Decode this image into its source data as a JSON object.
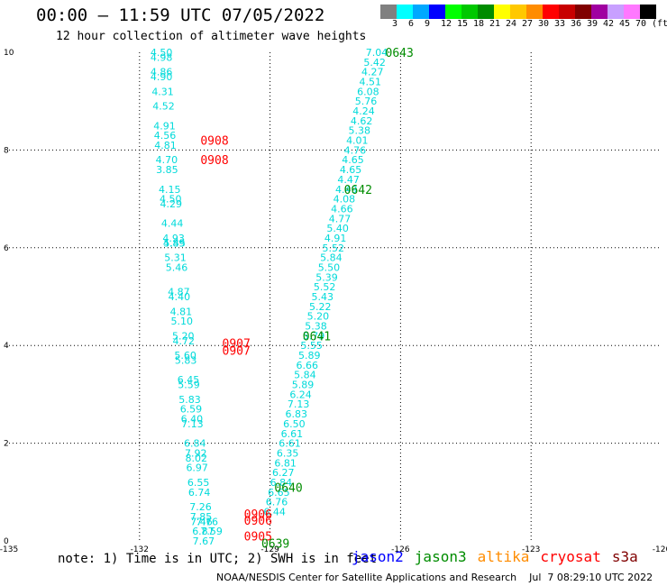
{
  "title": "00:00 — 11:59 UTC 07/05/2022",
  "subtitle": "12 hour collection of altimeter wave heights",
  "colorbar": {
    "colors": [
      "#808080",
      "#00ffff",
      "#00a8ff",
      "#0000ff",
      "#00ff00",
      "#00c800",
      "#008c00",
      "#ffff00",
      "#ffc800",
      "#ff8c00",
      "#ff0000",
      "#c80000",
      "#800000",
      "#a000a0",
      "#c8a0ff",
      "#ff78ff",
      "#000000"
    ],
    "labels": [
      "3",
      "6",
      "9",
      "12",
      "15",
      "18",
      "21",
      "24",
      "27",
      "30",
      "33",
      "36",
      "39",
      "42",
      "45",
      "70",
      "(ft)"
    ]
  },
  "chart_data": {
    "type": "scatter",
    "x_ticks": [
      "-135",
      "-132",
      "-129",
      "-126",
      "-123",
      "-120"
    ],
    "y_ticks": [
      "0",
      "2",
      "4",
      "6",
      "8",
      "10"
    ],
    "xlim": [
      -135,
      -120
    ],
    "ylim": [
      0,
      10
    ],
    "grid": true,
    "series": [
      {
        "name": "jason3",
        "color": "#00dada",
        "points": [
          {
            "x": -131.75,
            "y": 10.0,
            "v": "4.50"
          },
          {
            "x": -131.75,
            "y": 9.9,
            "v": "4.98"
          },
          {
            "x": -131.75,
            "y": 9.6,
            "v": "4.86"
          },
          {
            "x": -131.75,
            "y": 9.5,
            "v": "4.90"
          },
          {
            "x": -131.72,
            "y": 9.2,
            "v": "4.31"
          },
          {
            "x": -131.7,
            "y": 8.9,
            "v": "4.52"
          },
          {
            "x": -131.68,
            "y": 8.5,
            "v": "4.91"
          },
          {
            "x": -131.67,
            "y": 8.3,
            "v": "4.56"
          },
          {
            "x": -131.66,
            "y": 8.1,
            "v": "4.81"
          },
          {
            "x": -131.63,
            "y": 7.8,
            "v": "4.70"
          },
          {
            "x": -131.62,
            "y": 7.6,
            "v": "3.85"
          },
          {
            "x": -131.56,
            "y": 7.2,
            "v": "4.15"
          },
          {
            "x": -131.54,
            "y": 7.0,
            "v": "4.50"
          },
          {
            "x": -131.53,
            "y": 6.9,
            "v": "4.29"
          },
          {
            "x": -131.5,
            "y": 6.5,
            "v": "4.44"
          },
          {
            "x": -131.47,
            "y": 6.2,
            "v": "4.93"
          },
          {
            "x": -131.46,
            "y": 6.1,
            "v": "4.89"
          },
          {
            "x": -131.45,
            "y": 6.1,
            "v": "5.45"
          },
          {
            "x": -131.43,
            "y": 5.8,
            "v": "5.31"
          },
          {
            "x": -131.4,
            "y": 5.6,
            "v": "5.46"
          },
          {
            "x": -131.35,
            "y": 5.1,
            "v": "4.87"
          },
          {
            "x": -131.34,
            "y": 5.0,
            "v": "4.40"
          },
          {
            "x": -131.3,
            "y": 4.7,
            "v": "4.81"
          },
          {
            "x": -131.28,
            "y": 4.5,
            "v": "5.10"
          },
          {
            "x": -131.25,
            "y": 4.2,
            "v": "5.20"
          },
          {
            "x": -131.24,
            "y": 4.1,
            "v": "4.72"
          },
          {
            "x": -131.2,
            "y": 3.8,
            "v": "5.60"
          },
          {
            "x": -131.19,
            "y": 3.7,
            "v": "5.83"
          },
          {
            "x": -131.13,
            "y": 3.3,
            "v": "6.45"
          },
          {
            "x": -131.12,
            "y": 3.2,
            "v": "5.59"
          },
          {
            "x": -131.1,
            "y": 2.9,
            "v": "5.83"
          },
          {
            "x": -131.07,
            "y": 2.7,
            "v": "6.59"
          },
          {
            "x": -131.05,
            "y": 2.5,
            "v": "6.40"
          },
          {
            "x": -131.04,
            "y": 2.4,
            "v": "7.13"
          },
          {
            "x": -130.98,
            "y": 2.0,
            "v": "6.84"
          },
          {
            "x": -130.96,
            "y": 1.8,
            "v": "7.92"
          },
          {
            "x": -130.95,
            "y": 1.7,
            "v": "8.02"
          },
          {
            "x": -130.93,
            "y": 1.5,
            "v": "6.97"
          },
          {
            "x": -130.9,
            "y": 1.2,
            "v": "6.55"
          },
          {
            "x": -130.88,
            "y": 1.0,
            "v": "6.74"
          },
          {
            "x": -130.85,
            "y": 0.7,
            "v": "7.26"
          },
          {
            "x": -130.84,
            "y": 0.5,
            "v": "7.85"
          },
          {
            "x": -130.83,
            "y": 0.4,
            "v": "7.46"
          },
          {
            "x": -130.79,
            "y": 0.2,
            "v": "6.87"
          },
          {
            "x": -130.78,
            "y": 0.0,
            "v": "7.67"
          },
          {
            "x": -130.7,
            "y": 0.4,
            "v": "7.76"
          },
          {
            "x": -130.6,
            "y": 0.2,
            "v": "7.59"
          },
          {
            "x": -126.8,
            "y": 10.0,
            "v": "7.04"
          },
          {
            "x": -126.85,
            "y": 9.8,
            "v": "5.42"
          },
          {
            "x": -126.9,
            "y": 9.6,
            "v": "4.27"
          },
          {
            "x": -126.95,
            "y": 9.4,
            "v": "4.51"
          },
          {
            "x": -127.0,
            "y": 9.2,
            "v": "6.08"
          },
          {
            "x": -127.05,
            "y": 9.0,
            "v": "5.76"
          },
          {
            "x": -127.1,
            "y": 8.8,
            "v": "4.24"
          },
          {
            "x": -127.15,
            "y": 8.6,
            "v": "4.62"
          },
          {
            "x": -127.2,
            "y": 8.4,
            "v": "5.38"
          },
          {
            "x": -127.25,
            "y": 8.2,
            "v": "4.01"
          },
          {
            "x": -127.3,
            "y": 8.0,
            "v": "4.76"
          },
          {
            "x": -127.35,
            "y": 7.8,
            "v": "4.65"
          },
          {
            "x": -127.4,
            "y": 7.6,
            "v": "4.65"
          },
          {
            "x": -127.45,
            "y": 7.4,
            "v": "4.47"
          },
          {
            "x": -127.5,
            "y": 7.2,
            "v": "4.49"
          },
          {
            "x": -127.55,
            "y": 7.0,
            "v": "4.08"
          },
          {
            "x": -127.6,
            "y": 6.8,
            "v": "4.66"
          },
          {
            "x": -127.65,
            "y": 6.6,
            "v": "4.77"
          },
          {
            "x": -127.7,
            "y": 6.4,
            "v": "5.40"
          },
          {
            "x": -127.75,
            "y": 6.2,
            "v": "4.91"
          },
          {
            "x": -127.8,
            "y": 6.0,
            "v": "5.52"
          },
          {
            "x": -127.85,
            "y": 5.8,
            "v": "5.84"
          },
          {
            "x": -127.9,
            "y": 5.6,
            "v": "5.50"
          },
          {
            "x": -127.95,
            "y": 5.4,
            "v": "5.39"
          },
          {
            "x": -128.0,
            "y": 5.2,
            "v": "5.52"
          },
          {
            "x": -128.05,
            "y": 5.0,
            "v": "5.43"
          },
          {
            "x": -128.1,
            "y": 4.8,
            "v": "5.22"
          },
          {
            "x": -128.15,
            "y": 4.6,
            "v": "5.20"
          },
          {
            "x": -128.2,
            "y": 4.4,
            "v": "5.38"
          },
          {
            "x": -128.25,
            "y": 4.2,
            "v": "5.79"
          },
          {
            "x": -128.3,
            "y": 4.0,
            "v": "5.55"
          },
          {
            "x": -128.35,
            "y": 3.8,
            "v": "5.89"
          },
          {
            "x": -128.4,
            "y": 3.6,
            "v": "6.66"
          },
          {
            "x": -128.45,
            "y": 3.4,
            "v": "5.84"
          },
          {
            "x": -128.5,
            "y": 3.2,
            "v": "5.89"
          },
          {
            "x": -128.55,
            "y": 3.0,
            "v": "6.24"
          },
          {
            "x": -128.6,
            "y": 2.8,
            "v": "7.13"
          },
          {
            "x": -128.65,
            "y": 2.6,
            "v": "6.83"
          },
          {
            "x": -128.7,
            "y": 2.4,
            "v": "6.50"
          },
          {
            "x": -128.75,
            "y": 2.2,
            "v": "6.61"
          },
          {
            "x": -128.8,
            "y": 2.0,
            "v": "6.61"
          },
          {
            "x": -128.85,
            "y": 1.8,
            "v": "6.35"
          },
          {
            "x": -128.9,
            "y": 1.6,
            "v": "6.81"
          },
          {
            "x": -128.95,
            "y": 1.4,
            "v": "6.27"
          },
          {
            "x": -129.0,
            "y": 1.2,
            "v": "6.84"
          },
          {
            "x": -129.05,
            "y": 1.0,
            "v": "6.65"
          },
          {
            "x": -129.1,
            "y": 0.8,
            "v": "6.76"
          },
          {
            "x": -129.15,
            "y": 0.6,
            "v": "6.44"
          }
        ]
      }
    ],
    "pass_labels": [
      {
        "text": "0908",
        "x": -130.6,
        "y": 8.2,
        "color": "#ff0000"
      },
      {
        "text": "0908",
        "x": -130.6,
        "y": 7.8,
        "color": "#ff0000"
      },
      {
        "text": "0907",
        "x": -130.1,
        "y": 4.05,
        "color": "#ff0000"
      },
      {
        "text": "0907",
        "x": -130.1,
        "y": 3.9,
        "color": "#ff0000"
      },
      {
        "text": "0906",
        "x": -129.6,
        "y": 0.55,
        "color": "#ff0000"
      },
      {
        "text": "0906",
        "x": -129.6,
        "y": 0.42,
        "color": "#ff0000"
      },
      {
        "text": "0905",
        "x": -129.6,
        "y": 0.1,
        "color": "#ff0000"
      },
      {
        "text": "0643",
        "x": -126.35,
        "y": 10.0,
        "color": "#008c00"
      },
      {
        "text": "0642",
        "x": -127.3,
        "y": 7.2,
        "color": "#008c00"
      },
      {
        "text": "0641",
        "x": -128.25,
        "y": 4.2,
        "color": "#008c00"
      },
      {
        "text": "0640",
        "x": -128.9,
        "y": 1.1,
        "color": "#008c00"
      },
      {
        "text": "0639",
        "x": -129.2,
        "y": -0.05,
        "color": "#008c00"
      }
    ]
  },
  "footer_note": "note: 1) Time is in UTC; 2) SWH is in feet",
  "legend": [
    {
      "label": "jason2",
      "color": "#0000ff"
    },
    {
      "label": "jason3",
      "color": "#008c00"
    },
    {
      "label": "altika",
      "color": "#ff8c00"
    },
    {
      "label": "cryosat",
      "color": "#ff0000"
    },
    {
      "label": "s3a",
      "color": "#800000"
    }
  ],
  "credit": "NOAA/NESDIS Center for Satellite Applications and Research",
  "credit_timestamp": "Jul  7 08:29:10 UTC 2022"
}
